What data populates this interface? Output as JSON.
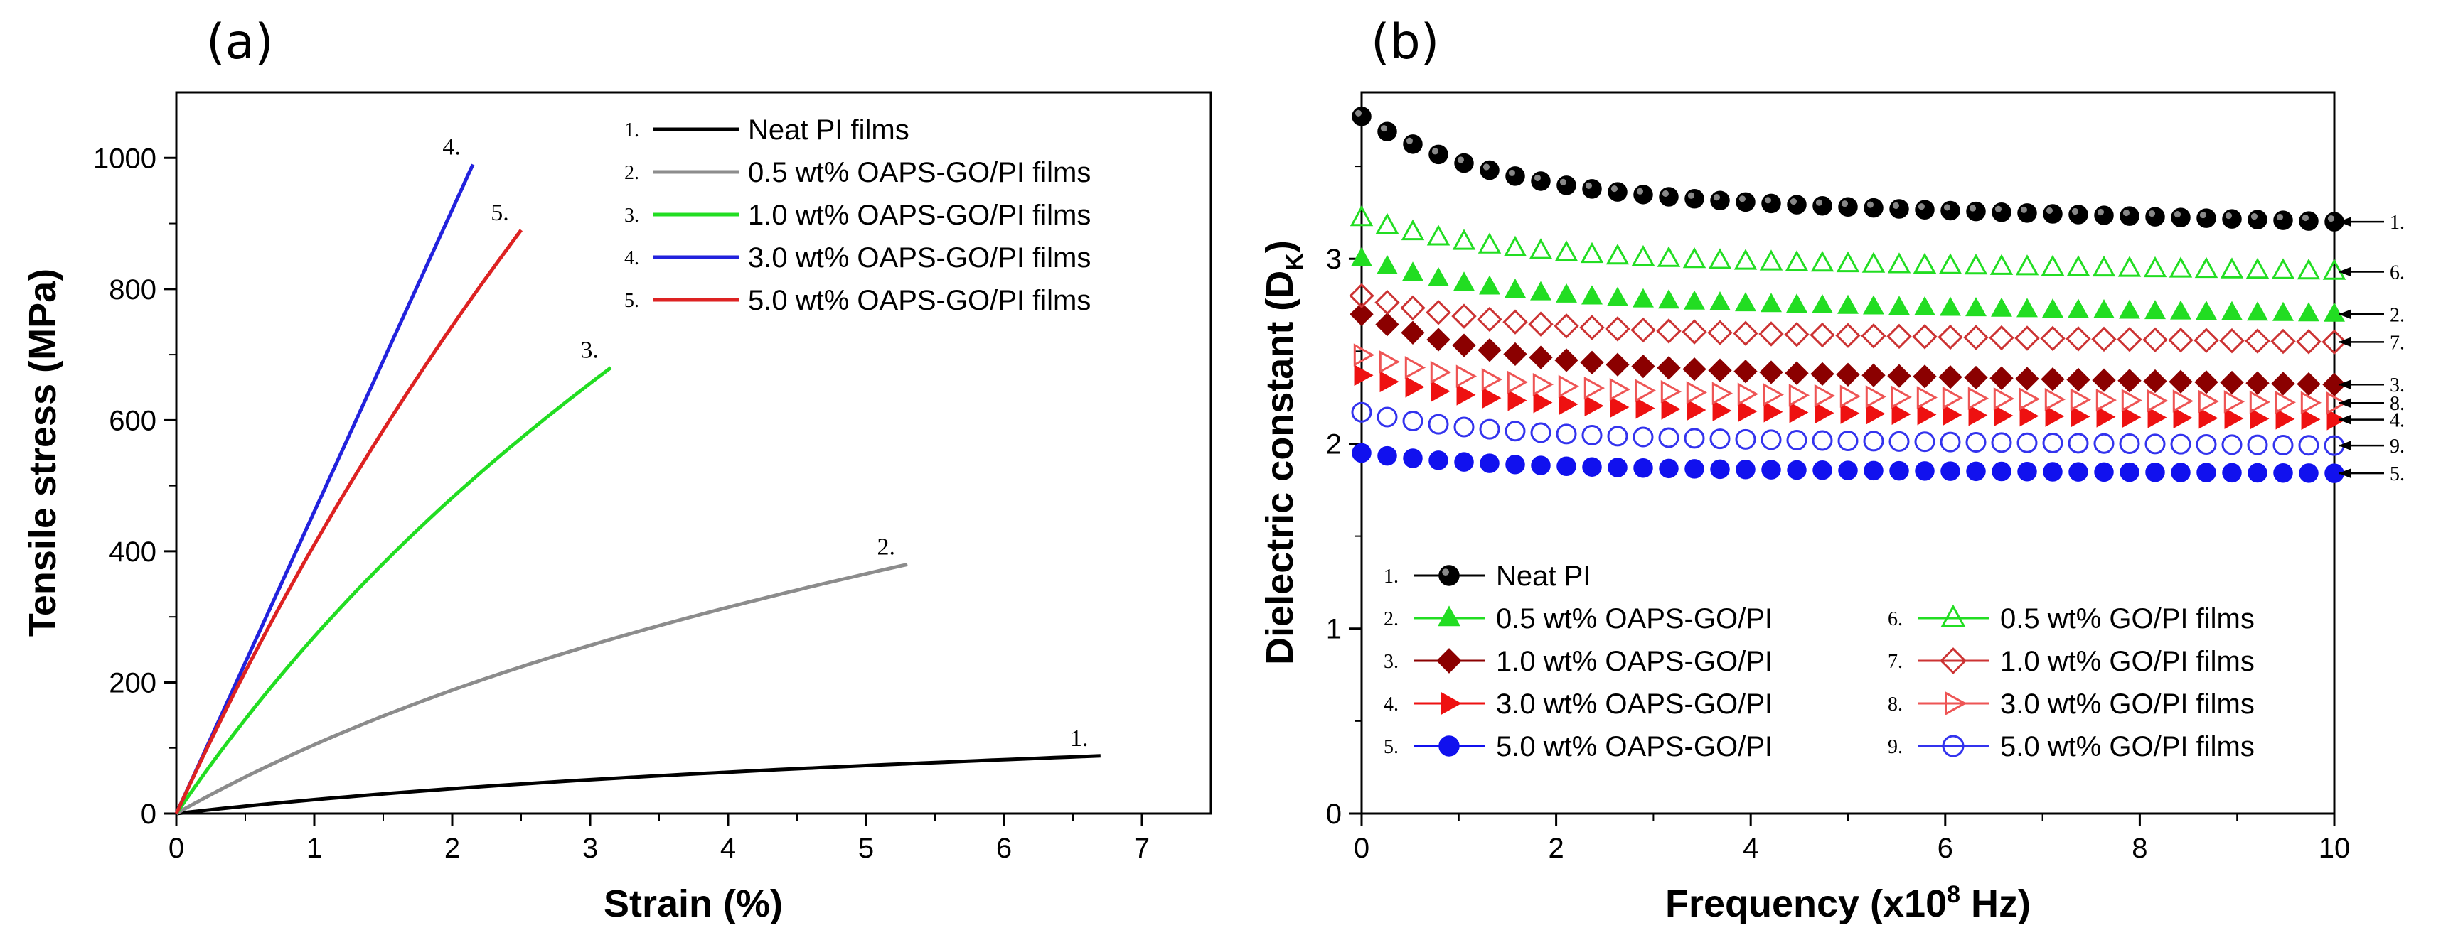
{
  "chart_data": [
    {
      "panel": "(a)",
      "type": "line",
      "xlabel": "Strain (%)",
      "ylabel": "Tensile stress (MPa)",
      "xlim": [
        0,
        7.5
      ],
      "ylim": [
        0,
        1100
      ],
      "xticks": [
        0,
        1,
        2,
        3,
        4,
        5,
        6,
        7
      ],
      "yticks": [
        0,
        200,
        400,
        600,
        800,
        1000
      ],
      "series": [
        {
          "num": "1.",
          "name": "Neat PI films",
          "color": "#000000",
          "max_strain": 6.7,
          "max_stress": 88,
          "shape": 0.6
        },
        {
          "num": "2.",
          "name": "0.5 wt% OAPS-GO/PI films",
          "color": "#8c8c8c",
          "max_strain": 5.3,
          "max_stress": 380,
          "shape": 0.5
        },
        {
          "num": "3.",
          "name": "1.0 wt% OAPS-GO/PI films",
          "color": "#22dd22",
          "max_strain": 3.15,
          "max_stress": 680,
          "shape": 0.35
        },
        {
          "num": "4.",
          "name": "3.0 wt% OAPS-GO/PI films",
          "color": "#2222dd",
          "max_strain": 2.15,
          "max_stress": 990,
          "shape": 0.12
        },
        {
          "num": "5.",
          "name": "5.0 wt% OAPS-GO/PI films",
          "color": "#dd2222",
          "max_strain": 2.5,
          "max_stress": 890,
          "shape": 0.25
        }
      ]
    },
    {
      "panel": "(b)",
      "type": "scatter",
      "xlabel": "Frequency (x10",
      "xlabel_sup": "8",
      "xlabel_end": " Hz)",
      "ylabel": "Dielectric constant (D",
      "ylabel_sub": "K",
      "ylabel_end": ")",
      "xlim": [
        0,
        10
      ],
      "ylim": [
        0,
        3.9
      ],
      "xticks": [
        0,
        2,
        4,
        6,
        8,
        10
      ],
      "yticks": [
        0,
        1,
        2,
        3
      ],
      "series": [
        {
          "num": "1.",
          "name": "Neat PI",
          "color": "#000000",
          "marker": "circle",
          "filled": true,
          "start": 3.77,
          "end": 3.2
        },
        {
          "num": "2.",
          "name": "0.5 wt% OAPS-GO/PI",
          "color": "#22dd22",
          "marker": "triangle-up",
          "filled": true,
          "start": 3.0,
          "end": 2.7
        },
        {
          "num": "3.",
          "name": "1.0 wt% OAPS-GO/PI",
          "color": "#8b0000",
          "marker": "diamond",
          "filled": true,
          "start": 2.7,
          "end": 2.32
        },
        {
          "num": "4.",
          "name": "3.0 wt% OAPS-GO/PI",
          "color": "#ee1111",
          "marker": "triangle-right",
          "filled": true,
          "start": 2.37,
          "end": 2.13
        },
        {
          "num": "5.",
          "name": "5.0 wt% OAPS-GO/PI",
          "color": "#1111ee",
          "marker": "circle",
          "filled": true,
          "start": 1.95,
          "end": 1.84
        },
        {
          "num": "6.",
          "name": "0.5 wt% GO/PI films",
          "color": "#22dd22",
          "marker": "triangle-up",
          "filled": false,
          "start": 3.22,
          "end": 2.93
        },
        {
          "num": "7.",
          "name": "1.0 wt% GO/PI films",
          "color": "#cc3333",
          "marker": "diamond",
          "filled": false,
          "start": 2.8,
          "end": 2.55
        },
        {
          "num": "8.",
          "name": "3.0 wt% GO/PI films",
          "color": "#ee5555",
          "marker": "triangle-right",
          "filled": false,
          "start": 2.48,
          "end": 2.22
        },
        {
          "num": "9.",
          "name": "5.0 wt% GO/PI films",
          "color": "#3333ee",
          "marker": "circle",
          "filled": false,
          "start": 2.17,
          "end": 1.99
        }
      ]
    }
  ]
}
